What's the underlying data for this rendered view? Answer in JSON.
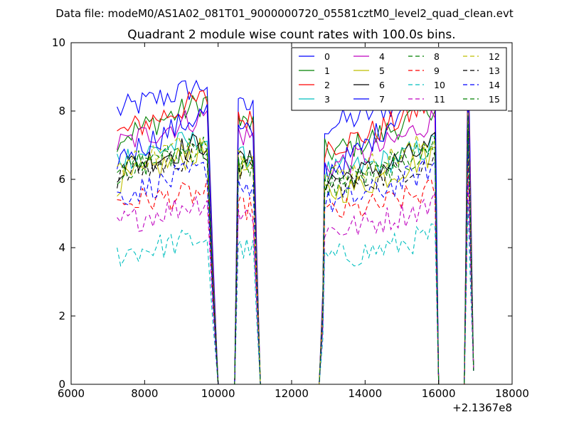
{
  "chart_data": {
    "type": "line",
    "suptitle": "Data file: modeM0/AS1A02_081T01_9000000720_05581cztM0_level2_quad_clean.evt",
    "title": "Quadrant 2 module wise count rates with 100.0s bins.",
    "xlabel": "",
    "ylabel": "",
    "x_offset_label": "+2.1367e8",
    "xlim": [
      6000,
      18000
    ],
    "ylim": [
      0,
      10
    ],
    "xticks": [
      6000,
      8000,
      10000,
      12000,
      14000,
      16000,
      18000
    ],
    "yticks": [
      0,
      2,
      4,
      6,
      8,
      10
    ],
    "grid": false,
    "legend_position": "top-right",
    "legend_columns": 4,
    "x_segment_ranges": [
      [
        7250,
        9700
      ],
      [
        10600,
        10950
      ],
      [
        12900,
        15900
      ],
      [
        16800,
        16850
      ]
    ],
    "series": [
      {
        "name": "0",
        "color": "#0000ff",
        "dash": "solid",
        "level": 8.0,
        "seg1_end": 8.8,
        "seg3_start": 7.6,
        "seg3_end": 8.8
      },
      {
        "name": "1",
        "color": "#008000",
        "dash": "solid",
        "level": 7.2,
        "seg1_end": 8.3,
        "seg3_start": 6.8,
        "seg3_end": 8.2
      },
      {
        "name": "2",
        "color": "#ff0000",
        "dash": "solid",
        "level": 7.3,
        "seg1_end": 8.4,
        "seg3_start": 7.0,
        "seg3_end": 8.3
      },
      {
        "name": "3",
        "color": "#00bfbf",
        "dash": "solid",
        "level": 6.6,
        "seg1_end": 7.2,
        "seg3_start": 6.2,
        "seg3_end": 7.0
      },
      {
        "name": "4",
        "color": "#bf00bf",
        "dash": "solid",
        "level": 7.0,
        "seg1_end": 7.9,
        "seg3_start": 6.4,
        "seg3_end": 7.8
      },
      {
        "name": "5",
        "color": "#bfbf00",
        "dash": "solid",
        "level": 5.9,
        "seg1_end": 6.9,
        "seg3_start": 5.6,
        "seg3_end": 6.8
      },
      {
        "name": "6",
        "color": "#000000",
        "dash": "solid",
        "level": 6.3,
        "seg1_end": 7.1,
        "seg3_start": 6.0,
        "seg3_end": 7.0
      },
      {
        "name": "7",
        "color": "#0000ff",
        "dash": "solid",
        "level": 6.6,
        "seg1_end": 8.0,
        "seg3_start": 6.3,
        "seg3_end": 9.4
      },
      {
        "name": "8",
        "color": "#008000",
        "dash": "dashed",
        "level": 6.2,
        "seg1_end": 7.0,
        "seg3_start": 5.8,
        "seg3_end": 6.9
      },
      {
        "name": "9",
        "color": "#ff0000",
        "dash": "dashed",
        "level": 5.3,
        "seg1_end": 5.6,
        "seg3_start": 5.0,
        "seg3_end": 5.7
      },
      {
        "name": "10",
        "color": "#00bfbf",
        "dash": "dashed",
        "level": 3.8,
        "seg1_end": 4.3,
        "seg3_start": 3.7,
        "seg3_end": 4.4
      },
      {
        "name": "11",
        "color": "#bf00bf",
        "dash": "dashed",
        "level": 4.7,
        "seg1_end": 5.4,
        "seg3_start": 4.5,
        "seg3_end": 5.3
      },
      {
        "name": "12",
        "color": "#bfbf00",
        "dash": "dashed",
        "level": 6.4,
        "seg1_end": 7.2,
        "seg3_start": 6.1,
        "seg3_end": 7.2
      },
      {
        "name": "13",
        "color": "#000000",
        "dash": "dashed",
        "level": 6.1,
        "seg1_end": 6.8,
        "seg3_start": 5.8,
        "seg3_end": 6.6
      },
      {
        "name": "14",
        "color": "#0000ff",
        "dash": "dashed",
        "level": 5.5,
        "seg1_end": 6.3,
        "seg3_start": 5.3,
        "seg3_end": 6.4
      },
      {
        "name": "15",
        "color": "#008000",
        "dash": "dashed",
        "level": 6.3,
        "seg1_end": 7.0,
        "seg3_start": 6.0,
        "seg3_end": 7.0
      }
    ]
  }
}
